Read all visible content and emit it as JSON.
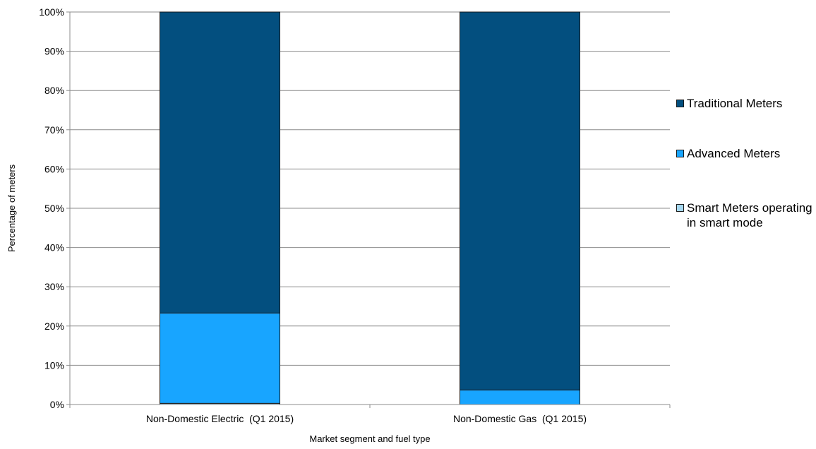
{
  "chart_data": {
    "type": "bar",
    "stacked": true,
    "percent": true,
    "title": "",
    "xlabel": "Market segment and fuel type",
    "ylabel": "Percentage of meters",
    "ylim": [
      0,
      100
    ],
    "yticks": [
      "0%",
      "10%",
      "20%",
      "30%",
      "40%",
      "50%",
      "60%",
      "70%",
      "80%",
      "90%",
      "100%"
    ],
    "grid": true,
    "legend_position": "right",
    "categories": [
      "Non-Domestic Electric  (Q1 2015)",
      "Non-Domestic Gas  (Q1 2015)"
    ],
    "series": [
      {
        "name": "Smart Meters operating in smart mode",
        "color": "#a6d8f0",
        "values": [
          0.3,
          0.0
        ]
      },
      {
        "name": "Advanced Meters",
        "color": "#18a5ff",
        "values": [
          23.0,
          3.7
        ]
      },
      {
        "name": "Traditional Meters",
        "color": "#034f7f",
        "values": [
          76.7,
          96.3
        ]
      }
    ],
    "legend_order": [
      "Traditional Meters",
      "Advanced Meters",
      "Smart Meters operating in smart mode"
    ]
  }
}
